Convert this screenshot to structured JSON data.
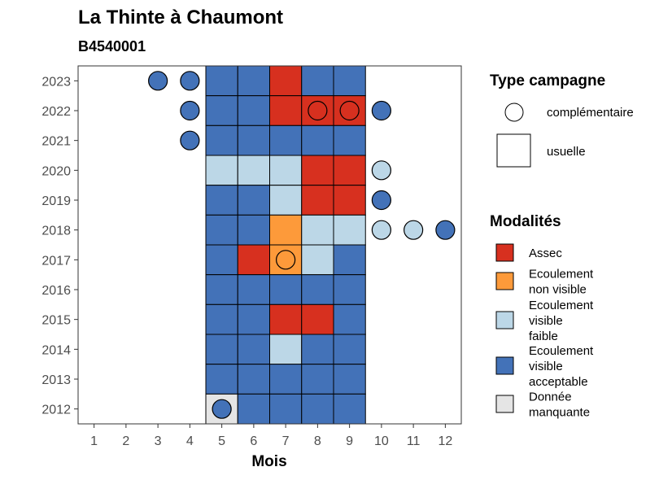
{
  "chart_data": {
    "type": "heatmap",
    "title": "La Thinte à Chaumont",
    "subtitle": "B4540001",
    "xlabel": "Mois",
    "ylabel": "",
    "x_ticks": [
      "1",
      "2",
      "3",
      "4",
      "5",
      "6",
      "7",
      "8",
      "9",
      "10",
      "11",
      "12"
    ],
    "y_ticks": [
      "2012",
      "2013",
      "2014",
      "2015",
      "2016",
      "2017",
      "2018",
      "2019",
      "2020",
      "2021",
      "2022",
      "2023"
    ],
    "grid": false,
    "legend_placement": "right",
    "colors": {
      "assec": "#d7301f",
      "ecoulement_non_visible": "#fd9a3a",
      "ecoulement_visible_faible": "#bcd7e7",
      "ecoulement_visible_acceptable": "#4372b8",
      "donnee_manquante": "#e5e5e5"
    },
    "legends": {
      "type_campagne": {
        "title": "Type campagne",
        "items": [
          {
            "key": "complementaire",
            "label": "complémentaire",
            "shape": "circle"
          },
          {
            "key": "usuelle",
            "label": "usuelle",
            "shape": "square"
          }
        ]
      },
      "modalites": {
        "title": "Modalités",
        "items": [
          {
            "key": "assec",
            "lines": [
              "Assec"
            ]
          },
          {
            "key": "ecoulement_non_visible",
            "lines": [
              "Ecoulement",
              "non visible"
            ]
          },
          {
            "key": "ecoulement_visible_faible",
            "lines": [
              "Ecoulement",
              "visible",
              "faible"
            ]
          },
          {
            "key": "ecoulement_visible_acceptable",
            "lines": [
              "Ecoulement",
              "visible",
              "acceptable"
            ]
          },
          {
            "key": "donnee_manquante",
            "lines": [
              "Donnée",
              "manquante"
            ]
          }
        ]
      }
    },
    "usuelle": [
      {
        "year": 2023,
        "months": [
          5,
          6,
          7,
          8,
          9
        ],
        "values": [
          "ecoulement_visible_acceptable",
          "ecoulement_visible_acceptable",
          "assec",
          "ecoulement_visible_acceptable",
          "ecoulement_visible_acceptable"
        ]
      },
      {
        "year": 2022,
        "months": [
          5,
          6,
          7,
          8,
          9
        ],
        "values": [
          "ecoulement_visible_acceptable",
          "ecoulement_visible_acceptable",
          "assec",
          "assec",
          "assec"
        ]
      },
      {
        "year": 2021,
        "months": [
          5,
          6,
          7,
          8,
          9
        ],
        "values": [
          "ecoulement_visible_acceptable",
          "ecoulement_visible_acceptable",
          "ecoulement_visible_acceptable",
          "ecoulement_visible_acceptable",
          "ecoulement_visible_acceptable"
        ]
      },
      {
        "year": 2020,
        "months": [
          5,
          6,
          7,
          8,
          9
        ],
        "values": [
          "ecoulement_visible_faible",
          "ecoulement_visible_faible",
          "ecoulement_visible_faible",
          "assec",
          "assec"
        ]
      },
      {
        "year": 2019,
        "months": [
          5,
          6,
          7,
          8,
          9
        ],
        "values": [
          "ecoulement_visible_acceptable",
          "ecoulement_visible_acceptable",
          "ecoulement_visible_faible",
          "assec",
          "assec"
        ]
      },
      {
        "year": 2018,
        "months": [
          5,
          6,
          7,
          8,
          9
        ],
        "values": [
          "ecoulement_visible_acceptable",
          "ecoulement_visible_acceptable",
          "ecoulement_non_visible",
          "ecoulement_visible_faible",
          "ecoulement_visible_faible"
        ]
      },
      {
        "year": 2017,
        "months": [
          5,
          6,
          7,
          8,
          9
        ],
        "values": [
          "ecoulement_visible_acceptable",
          "assec",
          "ecoulement_non_visible",
          "ecoulement_visible_faible",
          "ecoulement_visible_acceptable"
        ]
      },
      {
        "year": 2016,
        "months": [
          5,
          6,
          7,
          8,
          9
        ],
        "values": [
          "ecoulement_visible_acceptable",
          "ecoulement_visible_acceptable",
          "ecoulement_visible_acceptable",
          "ecoulement_visible_acceptable",
          "ecoulement_visible_acceptable"
        ]
      },
      {
        "year": 2015,
        "months": [
          5,
          6,
          7,
          8,
          9
        ],
        "values": [
          "ecoulement_visible_acceptable",
          "ecoulement_visible_acceptable",
          "assec",
          "assec",
          "ecoulement_visible_acceptable"
        ]
      },
      {
        "year": 2014,
        "months": [
          5,
          6,
          7,
          8,
          9
        ],
        "values": [
          "ecoulement_visible_acceptable",
          "ecoulement_visible_acceptable",
          "ecoulement_visible_faible",
          "ecoulement_visible_acceptable",
          "ecoulement_visible_acceptable"
        ]
      },
      {
        "year": 2013,
        "months": [
          5,
          6,
          7,
          8,
          9
        ],
        "values": [
          "ecoulement_visible_acceptable",
          "ecoulement_visible_acceptable",
          "ecoulement_visible_acceptable",
          "ecoulement_visible_acceptable",
          "ecoulement_visible_acceptable"
        ]
      },
      {
        "year": 2012,
        "months": [
          5,
          6,
          7,
          8,
          9
        ],
        "values": [
          "donnee_manquante",
          "ecoulement_visible_acceptable",
          "ecoulement_visible_acceptable",
          "ecoulement_visible_acceptable",
          "ecoulement_visible_acceptable"
        ]
      }
    ],
    "complementaire": [
      {
        "year": 2023,
        "month": 3,
        "value": "ecoulement_visible_acceptable"
      },
      {
        "year": 2023,
        "month": 4,
        "value": "ecoulement_visible_acceptable"
      },
      {
        "year": 2022,
        "month": 4,
        "value": "ecoulement_visible_acceptable"
      },
      {
        "year": 2022,
        "month": 8,
        "value": "assec"
      },
      {
        "year": 2022,
        "month": 9,
        "value": "assec"
      },
      {
        "year": 2022,
        "month": 10,
        "value": "ecoulement_visible_acceptable"
      },
      {
        "year": 2021,
        "month": 4,
        "value": "ecoulement_visible_acceptable"
      },
      {
        "year": 2020,
        "month": 10,
        "value": "ecoulement_visible_faible"
      },
      {
        "year": 2019,
        "month": 10,
        "value": "ecoulement_visible_acceptable"
      },
      {
        "year": 2018,
        "month": 10,
        "value": "ecoulement_visible_faible"
      },
      {
        "year": 2018,
        "month": 11,
        "value": "ecoulement_visible_faible"
      },
      {
        "year": 2018,
        "month": 12,
        "value": "ecoulement_visible_acceptable"
      },
      {
        "year": 2017,
        "month": 7,
        "value": "ecoulement_non_visible"
      },
      {
        "year": 2012,
        "month": 5,
        "value": "ecoulement_visible_acceptable"
      }
    ]
  }
}
